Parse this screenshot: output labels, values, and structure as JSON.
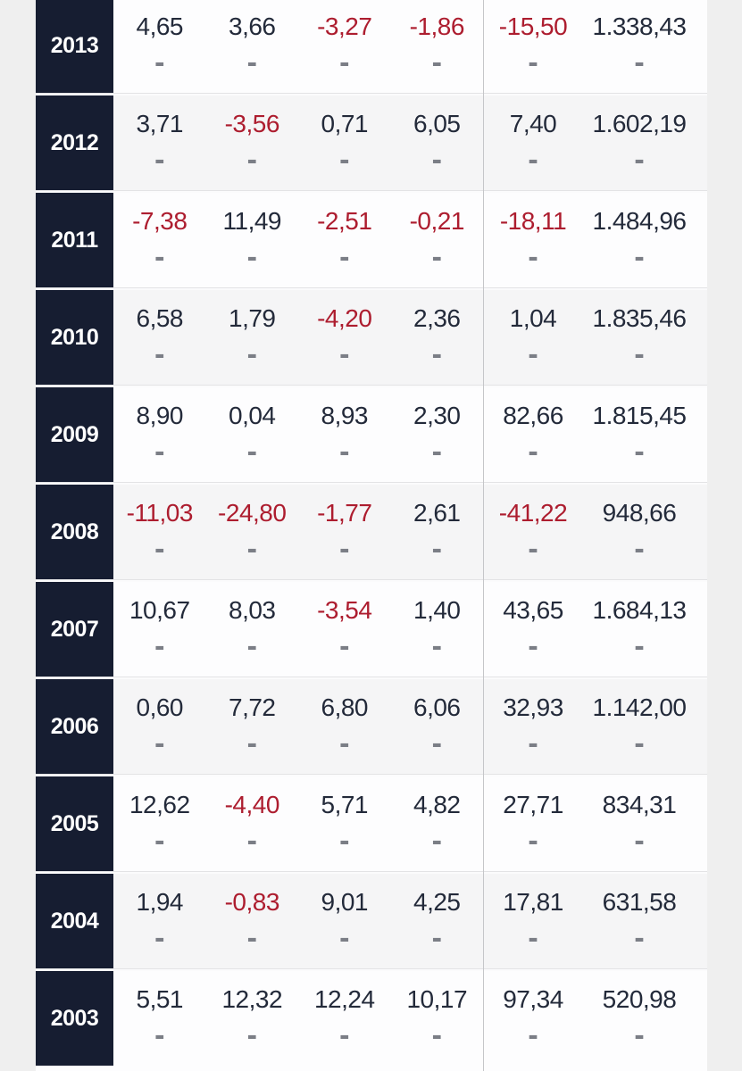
{
  "table": {
    "description_colors": {
      "positive_value": "#232a3a",
      "negative_value": "#ad1d2f",
      "year_column_background": "#161d31",
      "year_text": "#ffffff",
      "row_background_light": "#fdfdfe",
      "row_background_shaded": "#f5f5f6",
      "sub_placeholder_gray": "#7b7e86",
      "section_divider": "#c5c6c9"
    },
    "cell_sub_placeholder": "-",
    "rows": [
      {
        "year": "2013",
        "cells": [
          "4,65",
          "3,66",
          "-3,27",
          "-1,86"
        ],
        "right_cells": [
          "-15,50",
          "1.338,43"
        ]
      },
      {
        "year": "2012",
        "cells": [
          "3,71",
          "-3,56",
          "0,71",
          "6,05"
        ],
        "right_cells": [
          "7,40",
          "1.602,19"
        ]
      },
      {
        "year": "2011",
        "cells": [
          "-7,38",
          "11,49",
          "-2,51",
          "-0,21"
        ],
        "right_cells": [
          "-18,11",
          "1.484,96"
        ]
      },
      {
        "year": "2010",
        "cells": [
          "6,58",
          "1,79",
          "-4,20",
          "2,36"
        ],
        "right_cells": [
          "1,04",
          "1.835,46"
        ]
      },
      {
        "year": "2009",
        "cells": [
          "8,90",
          "0,04",
          "8,93",
          "2,30"
        ],
        "right_cells": [
          "82,66",
          "1.815,45"
        ]
      },
      {
        "year": "2008",
        "cells": [
          "-11,03",
          "-24,80",
          "-1,77",
          "2,61"
        ],
        "right_cells": [
          "-41,22",
          "948,66"
        ]
      },
      {
        "year": "2007",
        "cells": [
          "10,67",
          "8,03",
          "-3,54",
          "1,40"
        ],
        "right_cells": [
          "43,65",
          "1.684,13"
        ]
      },
      {
        "year": "2006",
        "cells": [
          "0,60",
          "7,72",
          "6,80",
          "6,06"
        ],
        "right_cells": [
          "32,93",
          "1.142,00"
        ]
      },
      {
        "year": "2005",
        "cells": [
          "12,62",
          "-4,40",
          "5,71",
          "4,82"
        ],
        "right_cells": [
          "27,71",
          "834,31"
        ]
      },
      {
        "year": "2004",
        "cells": [
          "1,94",
          "-0,83",
          "9,01",
          "4,25"
        ],
        "right_cells": [
          "17,81",
          "631,58"
        ]
      },
      {
        "year": "2003",
        "cells": [
          "5,51",
          "12,32",
          "12,24",
          "10,17"
        ],
        "right_cells": [
          "97,34",
          "520,98"
        ]
      }
    ]
  }
}
